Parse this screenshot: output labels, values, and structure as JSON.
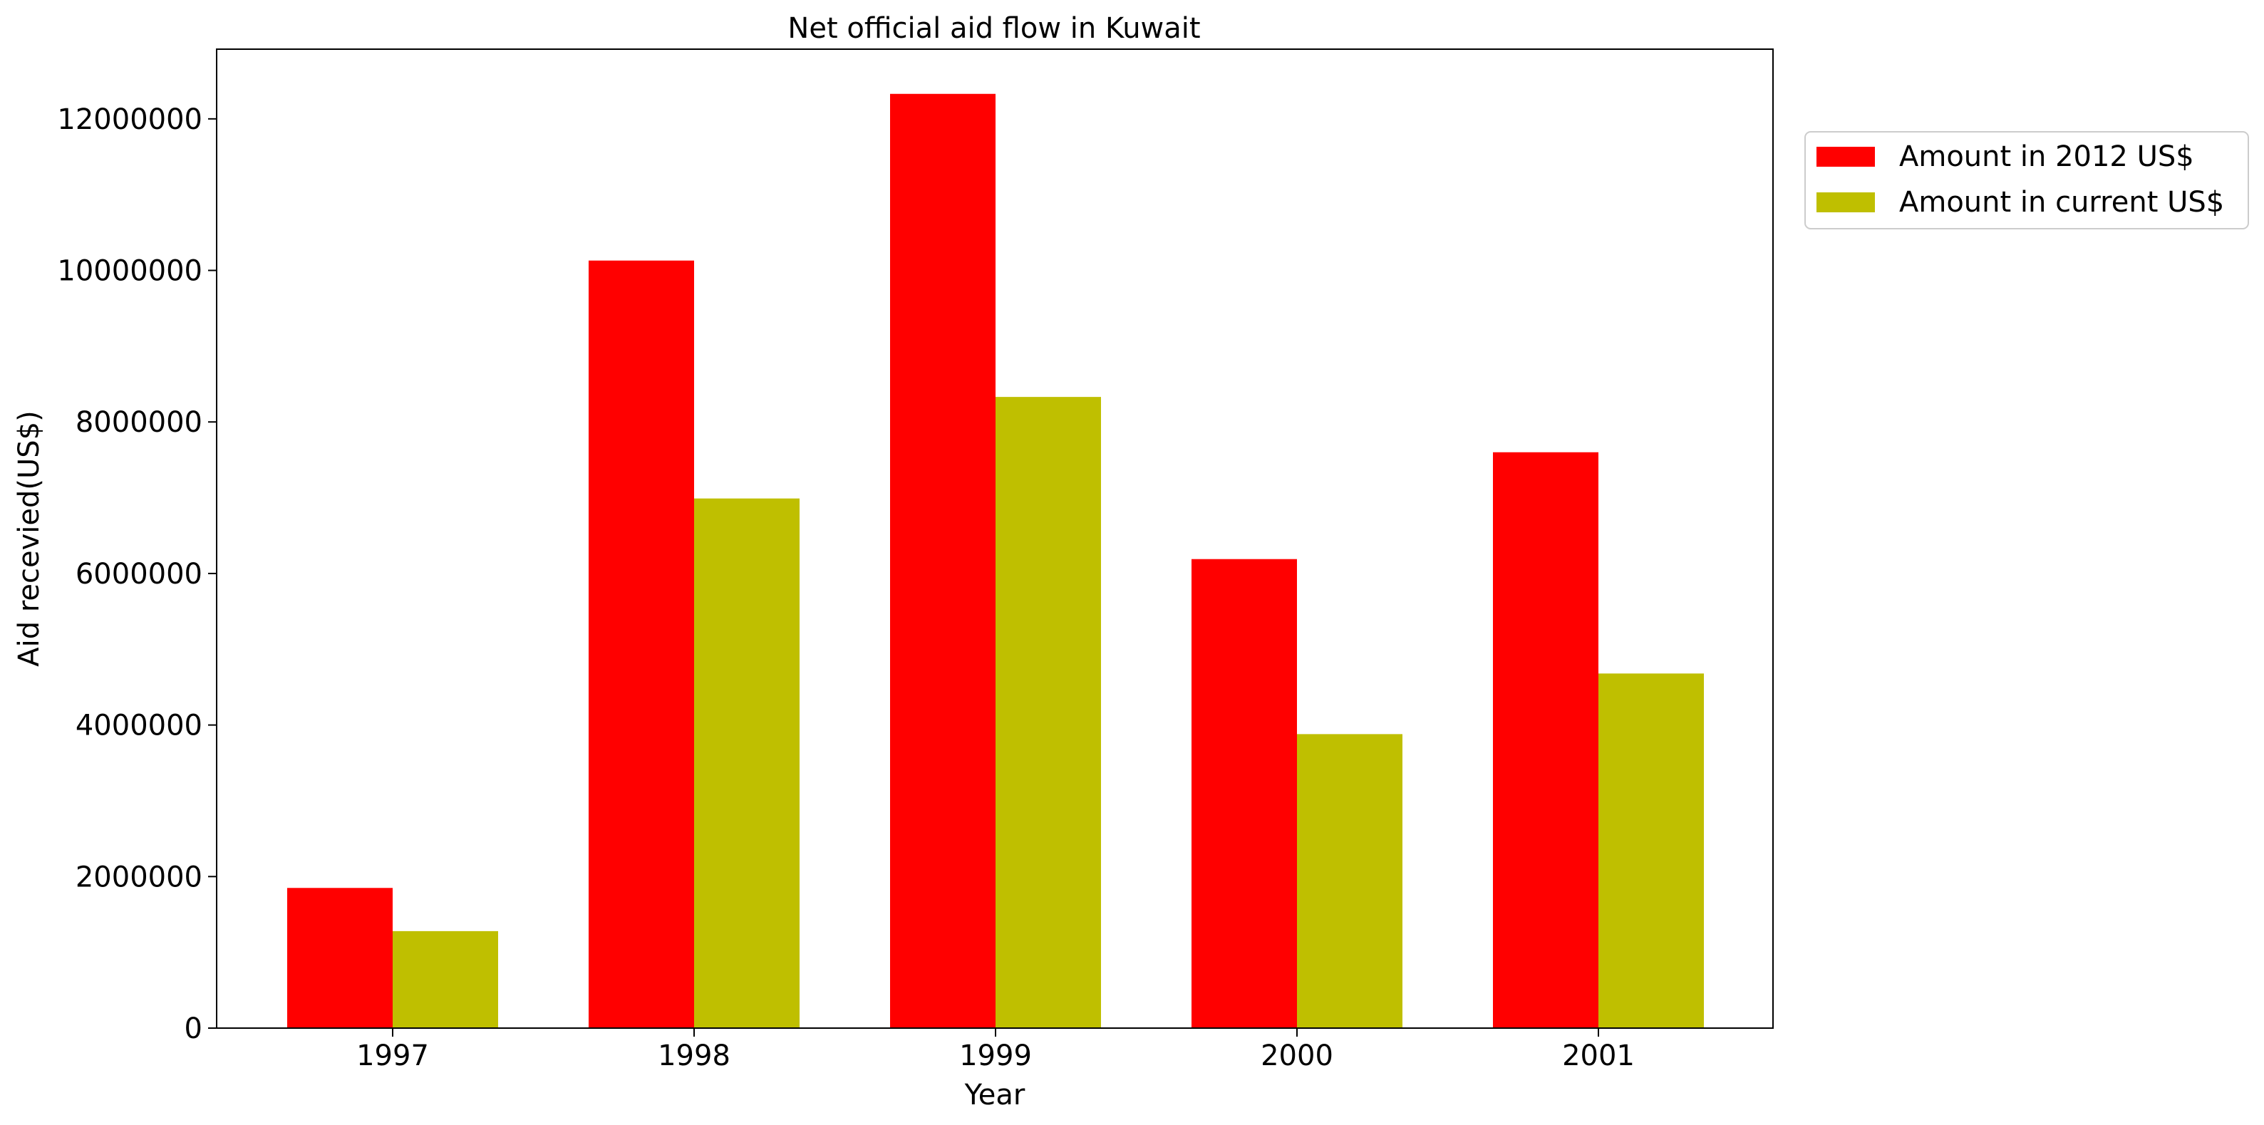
{
  "chart_data": {
    "type": "bar",
    "title": "Net official aid flow in Kuwait",
    "xlabel": "Year",
    "ylabel": "Aid recevied(US$)",
    "categories": [
      "1997",
      "1998",
      "1999",
      "2000",
      "2001"
    ],
    "series": [
      {
        "name": "Amount in 2012 US$",
        "color": "#ff0000",
        "values": [
          1850000,
          10130000,
          12330000,
          6190000,
          7600000
        ]
      },
      {
        "name": "Amount in current US$",
        "color": "#bfbf00",
        "values": [
          1280000,
          6990000,
          8330000,
          3880000,
          4680000
        ]
      }
    ],
    "ylim": [
      0,
      12920000
    ],
    "yticks": [
      0,
      2000000,
      4000000,
      6000000,
      8000000,
      10000000,
      12000000
    ],
    "ytick_labels": [
      "0",
      "2000000",
      "4000000",
      "6000000",
      "8000000",
      "10000000",
      "12000000"
    ],
    "grid": false,
    "legend_position": "upper-right-outside"
  }
}
